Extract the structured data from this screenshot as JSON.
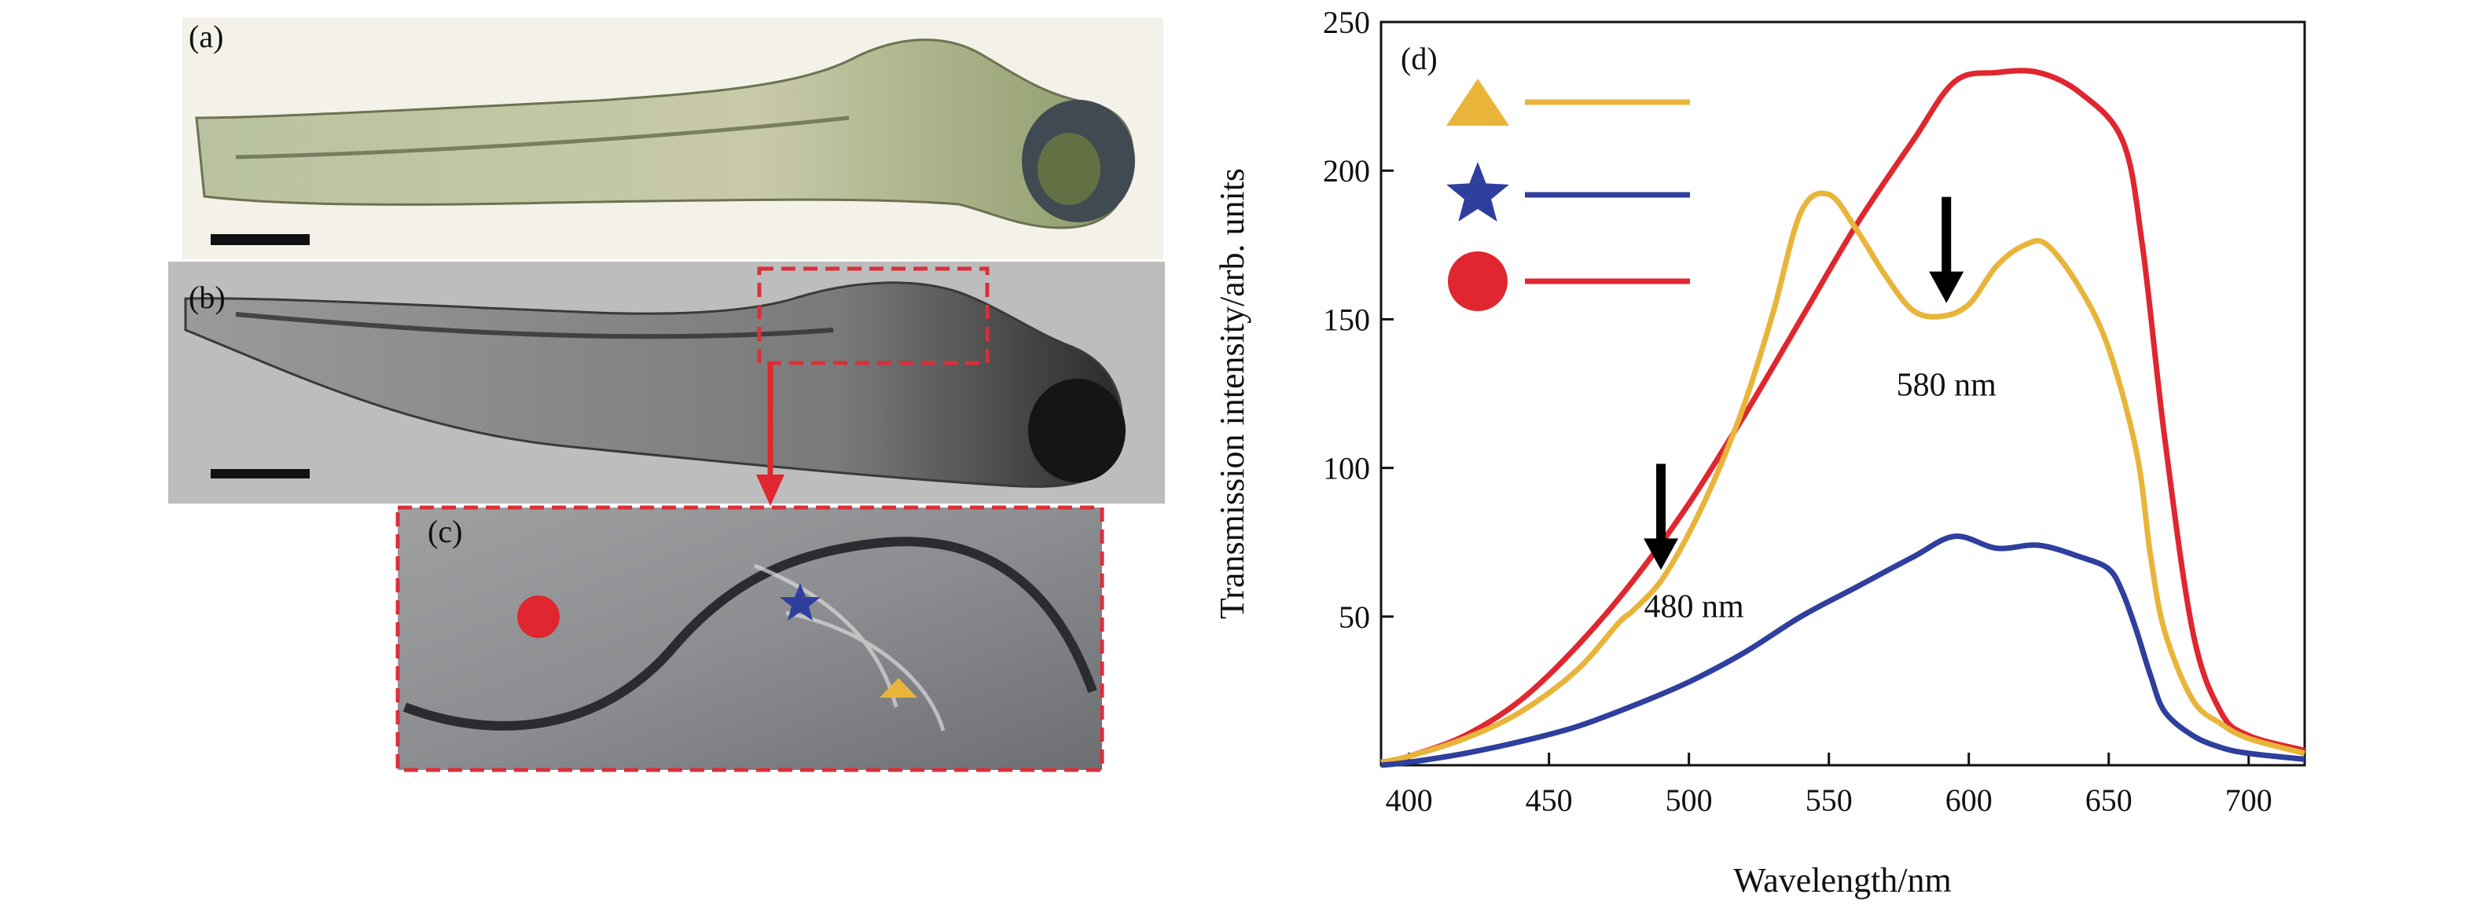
{
  "panels": {
    "a": {
      "label": "(a)"
    },
    "b": {
      "label": "(b)"
    },
    "c": {
      "label": "(c)"
    },
    "d": {
      "label": "(d)"
    }
  },
  "colors": {
    "triangle": "#e8b53a",
    "star": "#2e3f9e",
    "circle": "#e0262e",
    "inset_box": "#d8303a",
    "arrow": "#e0262e"
  },
  "legend": [
    {
      "marker": "triangle-icon",
      "color": "#e8b53a"
    },
    {
      "marker": "star-icon",
      "color": "#2e3f9e"
    },
    {
      "marker": "circle-icon",
      "color": "#e0262e"
    }
  ],
  "chart_data": {
    "type": "line",
    "xlabel": "Wavelength/nm",
    "ylabel": "Transmission intensity/arb. units",
    "xlim": [
      390,
      720
    ],
    "ylim": [
      0,
      250
    ],
    "xticks": [
      400,
      450,
      500,
      550,
      600,
      650,
      700
    ],
    "yticks": [
      50,
      100,
      150,
      200,
      250
    ],
    "grid": false,
    "legend_position": "top-left",
    "series": [
      {
        "marker": "circle",
        "color": "#e0262e",
        "x": [
          390,
          400,
          420,
          440,
          460,
          480,
          500,
          520,
          540,
          560,
          580,
          595,
          610,
          625,
          640,
          655,
          662,
          670,
          680,
          690,
          700,
          720
        ],
        "y": [
          1,
          3,
          10,
          22,
          40,
          62,
          88,
          118,
          150,
          182,
          210,
          230,
          233,
          233,
          226,
          210,
          175,
          110,
          45,
          18,
          10,
          5
        ]
      },
      {
        "marker": "triangle",
        "color": "#e8b53a",
        "x": [
          390,
          400,
          420,
          440,
          460,
          475,
          480,
          490,
          500,
          510,
          520,
          530,
          540,
          550,
          560,
          570,
          580,
          590,
          600,
          610,
          620,
          628,
          640,
          650,
          660,
          665,
          670,
          680,
          690,
          700,
          720
        ],
        "y": [
          1,
          3,
          9,
          18,
          32,
          48,
          52,
          62,
          78,
          98,
          122,
          152,
          186,
          192,
          180,
          165,
          153,
          151,
          155,
          168,
          175,
          175,
          160,
          140,
          105,
          70,
          45,
          22,
          14,
          9,
          4
        ]
      },
      {
        "marker": "star",
        "color": "#2e3f9e",
        "x": [
          390,
          400,
          420,
          440,
          460,
          480,
          500,
          520,
          540,
          560,
          580,
          595,
          610,
          625,
          640,
          650,
          655,
          660,
          665,
          670,
          680,
          690,
          700,
          720
        ],
        "y": [
          0,
          1,
          4,
          8,
          13,
          20,
          28,
          38,
          50,
          60,
          70,
          77,
          73,
          74,
          70,
          66,
          58,
          45,
          30,
          18,
          10,
          6,
          4,
          2
        ]
      }
    ],
    "annotations": [
      {
        "text": "480 nm",
        "x": 490
      },
      {
        "text": "580 nm",
        "x": 592
      }
    ]
  }
}
